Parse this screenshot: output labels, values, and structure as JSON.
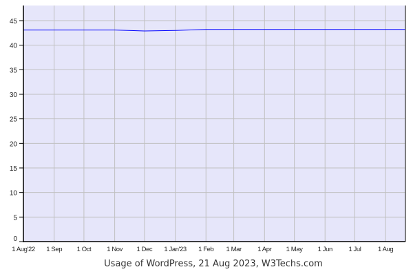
{
  "chart_data": {
    "type": "line",
    "title": "",
    "caption": "Usage of WordPress, 21 Aug 2023, W3Techs.com",
    "xlabel": "",
    "ylabel": "",
    "ylim": [
      0,
      48
    ],
    "yticks": [
      0,
      5,
      10,
      15,
      20,
      25,
      30,
      35,
      40,
      45
    ],
    "xlim": [
      "2022-08-01",
      "2023-08-21"
    ],
    "xticks": [
      {
        "date": "2022-08-01",
        "label": "1 Aug'22"
      },
      {
        "date": "2022-09-01",
        "label": "1 Sep"
      },
      {
        "date": "2022-10-01",
        "label": "1 Oct"
      },
      {
        "date": "2022-11-01",
        "label": "1 Nov"
      },
      {
        "date": "2022-12-01",
        "label": "1 Dec"
      },
      {
        "date": "2023-01-01",
        "label": "1 Jan'23"
      },
      {
        "date": "2023-02-01",
        "label": "1 Feb"
      },
      {
        "date": "2023-03-01",
        "label": "1 Mar"
      },
      {
        "date": "2023-04-01",
        "label": "1 Apr"
      },
      {
        "date": "2023-05-01",
        "label": "1 May"
      },
      {
        "date": "2023-06-01",
        "label": "1 Jun"
      },
      {
        "date": "2023-07-01",
        "label": "1 Jul"
      },
      {
        "date": "2023-08-01",
        "label": "1 Aug"
      }
    ],
    "grid": true,
    "colors": {
      "background": "#e6e6fa",
      "grid": "#c0c0c0",
      "line": "#0000ff",
      "axis": "#000000"
    },
    "series": [
      {
        "x": [
          "2022-08-01",
          "2022-09-01",
          "2022-10-01",
          "2022-11-01",
          "2022-12-01",
          "2023-01-01",
          "2023-02-01",
          "2023-03-01",
          "2023-04-01",
          "2023-05-01",
          "2023-06-01",
          "2023-07-01",
          "2023-08-01",
          "2023-08-21"
        ],
        "y": [
          43.1,
          43.1,
          43.1,
          43.1,
          42.9,
          43.0,
          43.2,
          43.2,
          43.2,
          43.2,
          43.2,
          43.2,
          43.2,
          43.2
        ]
      }
    ]
  }
}
